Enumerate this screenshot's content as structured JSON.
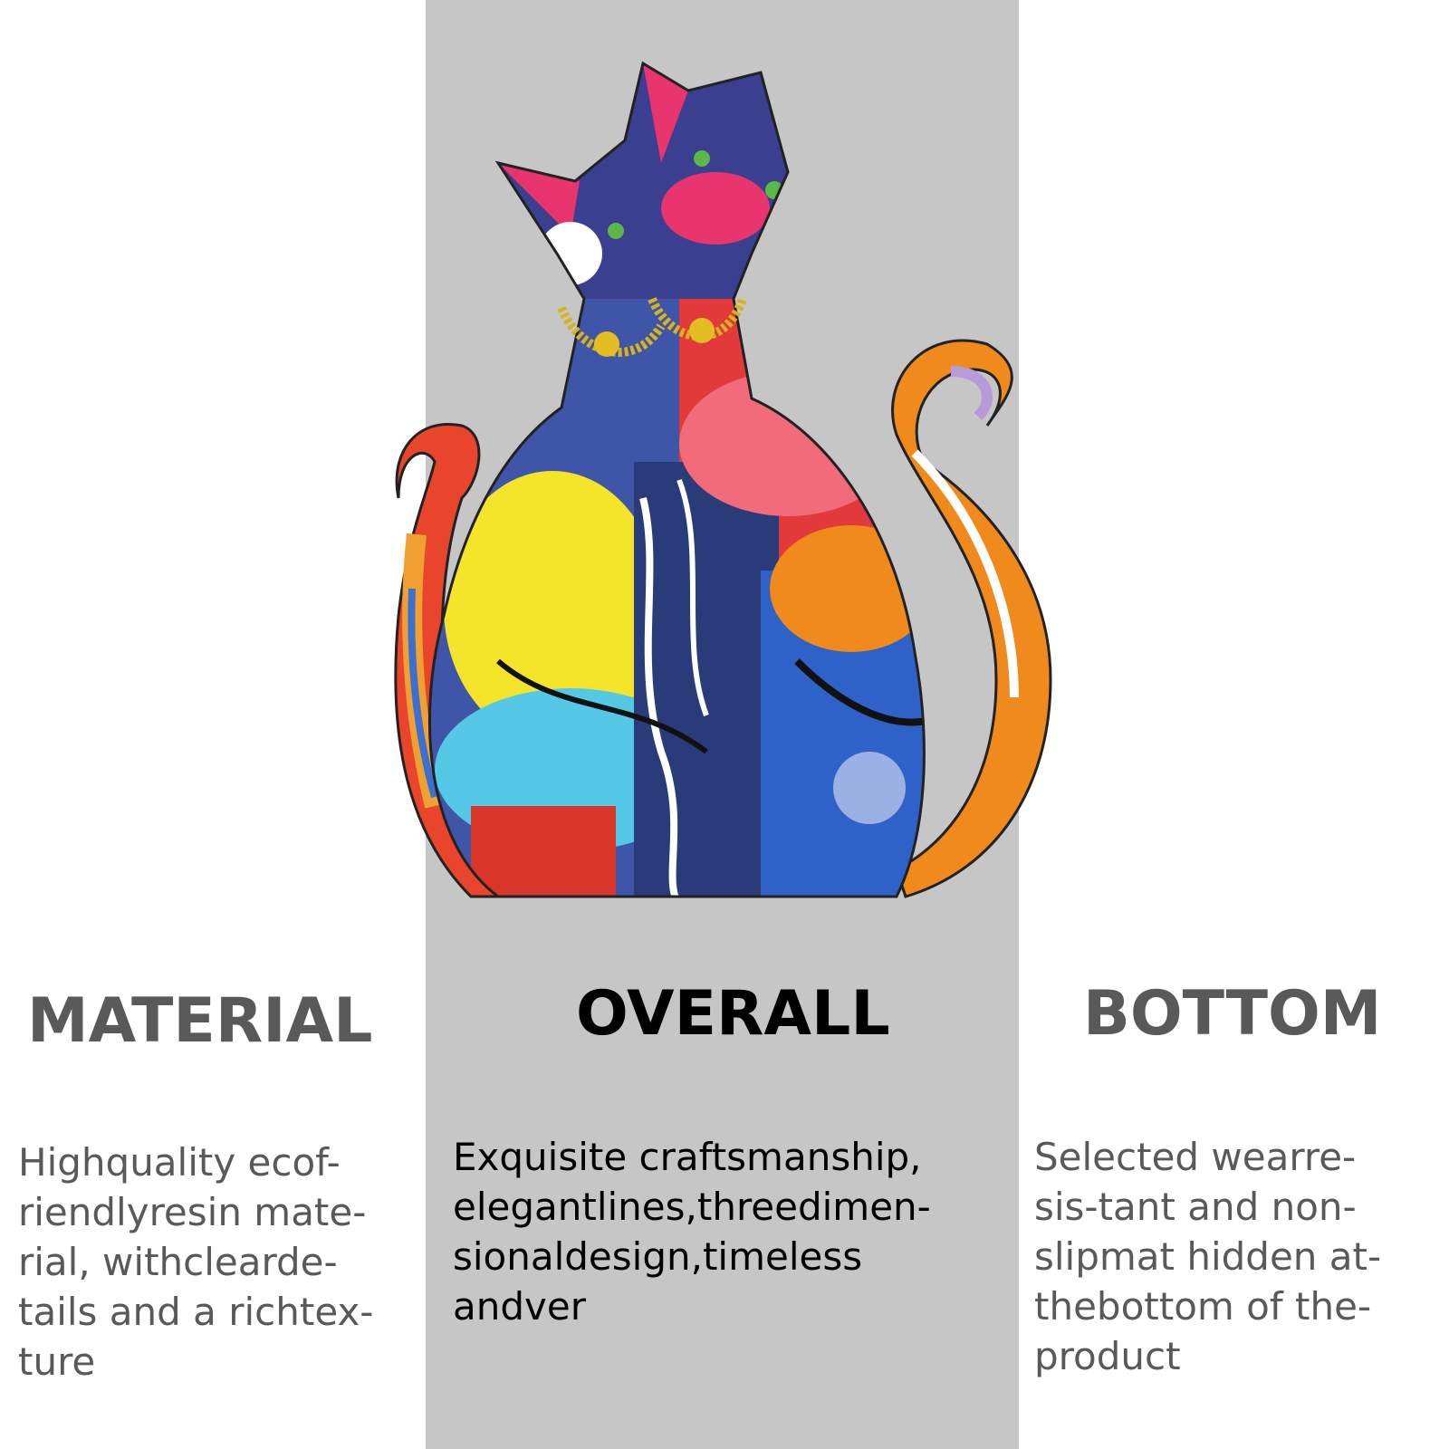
{
  "colors": {
    "center_panel": "#c6c6c6",
    "side_text": "#595959",
    "center_text": "#000000"
  },
  "columns": {
    "material": {
      "heading": "MATERIAL",
      "lines": [
        "Highquality ecof-",
        "riendlyresin mate-",
        "rial, withclearde-",
        "tails and a richtex-",
        "ture"
      ]
    },
    "overall": {
      "heading": "OVERALL",
      "lines": [
        "Exquisite craftsmanship,",
        "elegantlines,threedimen-",
        "sionaldesign,timeless",
        "andver"
      ]
    },
    "bottom": {
      "heading": "BOTTOM",
      "lines": [
        "Selected wearre-",
        "sis-tant and non-",
        "slipmat hidden at-",
        "thebottom of the-",
        "product"
      ]
    }
  },
  "product_image": {
    "icon": "graffiti-cat-couple-figurine-icon"
  }
}
